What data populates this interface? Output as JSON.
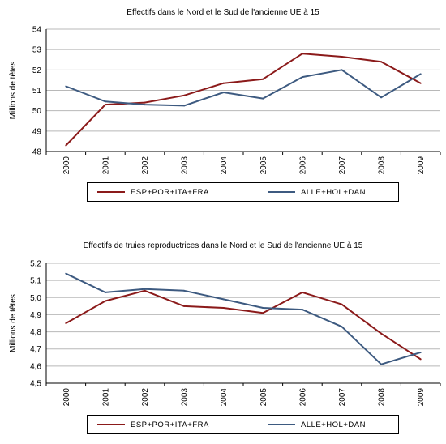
{
  "colors": {
    "series1": "#8b1a1a",
    "series2": "#3d5a80",
    "grid": "#b8b8b8",
    "axis": "#000000"
  },
  "chart_data": [
    {
      "type": "line",
      "title": "Effectifs dans le Nord et le Sud de l'ancienne UE à 15",
      "ylabel": "Millions de têtes",
      "xlabel": "",
      "categories": [
        "2000",
        "2001",
        "2002",
        "2003",
        "2004",
        "2005",
        "2006",
        "2007",
        "2008",
        "2009"
      ],
      "ylim": [
        48,
        54
      ],
      "yticks": [
        "48",
        "49",
        "50",
        "51",
        "52",
        "53",
        "54"
      ],
      "grid": true,
      "legend_position": "bottom",
      "series": [
        {
          "name": "ESP+POR+ITA+FRA",
          "values": [
            48.3,
            50.3,
            50.4,
            50.75,
            51.35,
            51.55,
            52.8,
            52.65,
            52.4,
            51.35
          ]
        },
        {
          "name": "ALLE+HOL+DAN",
          "values": [
            51.2,
            50.45,
            50.3,
            50.25,
            50.9,
            50.6,
            51.65,
            52.0,
            50.65,
            51.8
          ]
        }
      ]
    },
    {
      "type": "line",
      "title": "Effectifs de truies reproductrices dans le Nord et le Sud de l'ancienne UE à 15",
      "ylabel": "Millions de têtes",
      "xlabel": "",
      "categories": [
        "2000",
        "2001",
        "2002",
        "2003",
        "2004",
        "2005",
        "2006",
        "2007",
        "2008",
        "2009"
      ],
      "ylim": [
        4.5,
        5.2
      ],
      "yticks": [
        "4,5",
        "4,6",
        "4,7",
        "4,8",
        "4,9",
        "5,0",
        "5,1",
        "5,2"
      ],
      "grid": true,
      "legend_position": "bottom",
      "series": [
        {
          "name": "ESP+POR+ITA+FRA",
          "values": [
            4.85,
            4.98,
            5.04,
            4.95,
            4.94,
            4.91,
            5.03,
            4.96,
            4.79,
            4.64
          ]
        },
        {
          "name": "ALLE+HOL+DAN",
          "values": [
            5.14,
            5.03,
            5.05,
            5.04,
            4.99,
            4.94,
            4.93,
            4.83,
            4.61,
            4.68
          ]
        }
      ]
    }
  ]
}
